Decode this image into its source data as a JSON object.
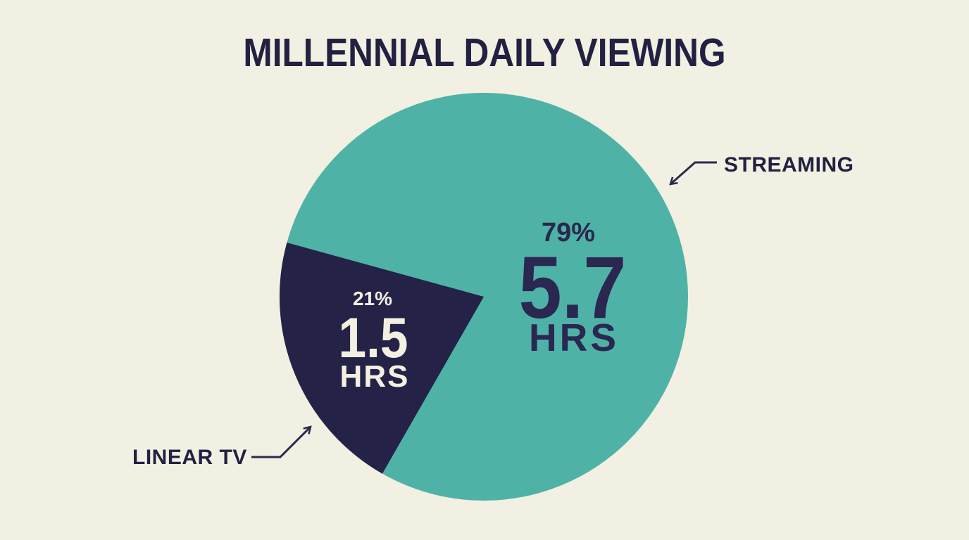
{
  "title": "MILLENNIAL DAILY VIEWING",
  "chart_data": {
    "type": "pie",
    "title": "MILLENNIAL DAILY VIEWING",
    "legend_position": "external-callout-arrows",
    "segments": [
      {
        "label": "STREAMING",
        "percent": 79,
        "percent_label": "79%",
        "hours": 5.7,
        "hours_label": "5.7",
        "hours_unit": "HRS",
        "color": "#4fb2a7",
        "text_color": "#2a2750"
      },
      {
        "label": "LINEAR TV",
        "percent": 21,
        "percent_label": "21%",
        "hours": 1.5,
        "hours_label": "1.5",
        "hours_unit": "HRS",
        "color": "#252247",
        "text_color": "#f3f0e2"
      }
    ]
  },
  "colors": {
    "background": "#f2f0e2",
    "title_text": "#232142",
    "arrow": "#2b2a4e"
  }
}
